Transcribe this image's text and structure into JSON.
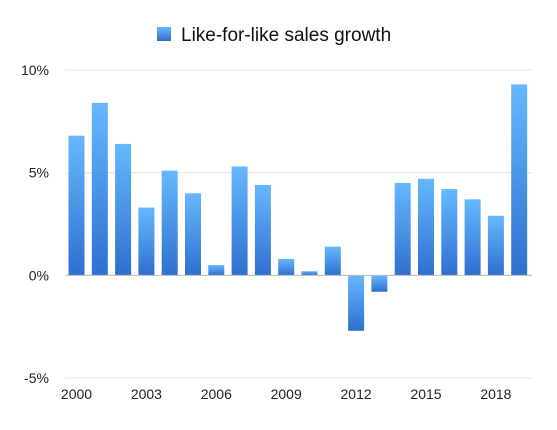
{
  "chart_data": {
    "type": "bar",
    "legend": {
      "label": "Like-for-like sales growth",
      "position": "top-center"
    },
    "series": [
      {
        "name": "Like-for-like sales growth",
        "color_top": "#66b8ff",
        "color_bottom": "#2f6fcf",
        "x": [
          2000,
          2001,
          2002,
          2003,
          2004,
          2005,
          2006,
          2007,
          2008,
          2009,
          2010,
          2011,
          2012,
          2013,
          2014,
          2015,
          2016,
          2017,
          2018,
          2019
        ],
        "values": [
          6.8,
          8.4,
          6.4,
          3.3,
          5.1,
          4.0,
          0.5,
          5.3,
          4.4,
          0.8,
          0.2,
          1.4,
          -2.7,
          -0.8,
          4.5,
          4.7,
          4.2,
          3.7,
          2.9,
          9.3
        ]
      }
    ],
    "ylim": [
      -5,
      10
    ],
    "yticks": [
      {
        "value": 10,
        "label": "10%"
      },
      {
        "value": 5,
        "label": "5%"
      },
      {
        "value": 0,
        "label": "0%"
      },
      {
        "value": -5,
        "label": "-5%"
      }
    ],
    "xticks": [
      {
        "value": 2000,
        "label": "2000"
      },
      {
        "value": 2003,
        "label": "2003"
      },
      {
        "value": 2006,
        "label": "2006"
      },
      {
        "value": 2009,
        "label": "2009"
      },
      {
        "value": 2012,
        "label": "2012"
      },
      {
        "value": 2015,
        "label": "2015"
      },
      {
        "value": 2018,
        "label": "2018"
      }
    ],
    "grid": true,
    "title": "",
    "xlabel": "",
    "ylabel": ""
  }
}
